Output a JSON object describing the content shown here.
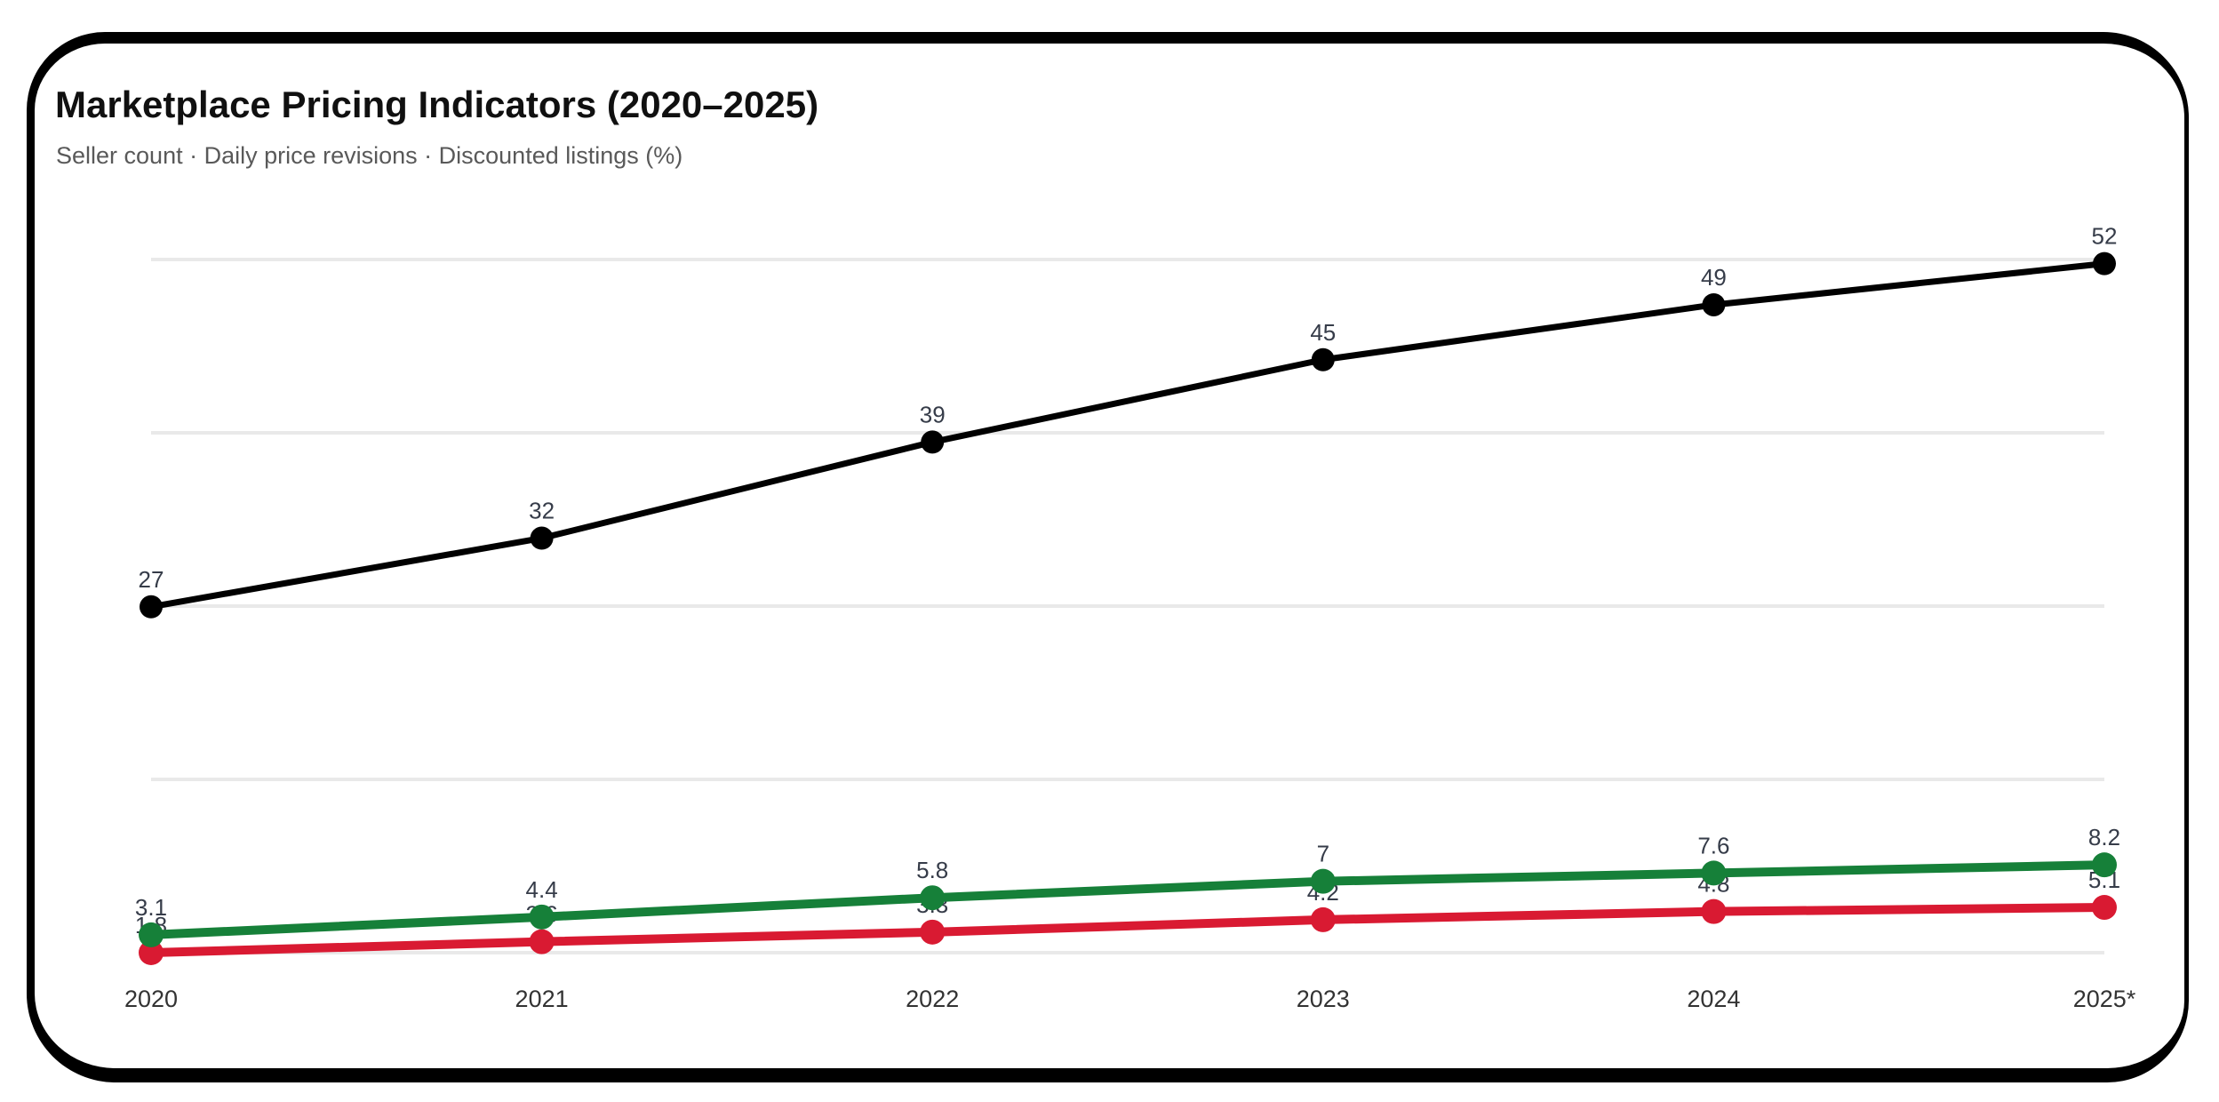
{
  "header": {
    "title": "Marketplace Pricing Indicators (2020–2025)",
    "subtitle": "Seller count · Daily price revisions · Discounted listings (%)"
  },
  "chart_data": {
    "type": "line",
    "title": "Marketplace Pricing Indicators (2020–2025)",
    "subtitle_legend": "Seller count · Daily price revisions · Discounted listings (%)",
    "categories": [
      "2020",
      "2021",
      "2022",
      "2023",
      "2024",
      "2025*"
    ],
    "series": [
      {
        "name": "Seller count",
        "color": "#000000",
        "values": [
          27,
          32,
          39,
          45,
          49,
          52
        ]
      },
      {
        "name": "Daily price revisions",
        "color": "#d91a32",
        "values": [
          1.8,
          2.6,
          3.3,
          4.2,
          4.8,
          5.1
        ]
      },
      {
        "name": "Discounted listings (%)",
        "color": "#168039",
        "values": [
          3.1,
          4.4,
          5.8,
          7,
          7.6,
          8.2
        ]
      }
    ],
    "xlabel": "",
    "ylabel": "",
    "ylim": [
      1.8,
      52.3
    ],
    "gridlines": "horizontal-only, 5 faint lines",
    "data_labels": true,
    "legend_position": "subtitle"
  },
  "frame": {
    "style_color": "#000000"
  }
}
